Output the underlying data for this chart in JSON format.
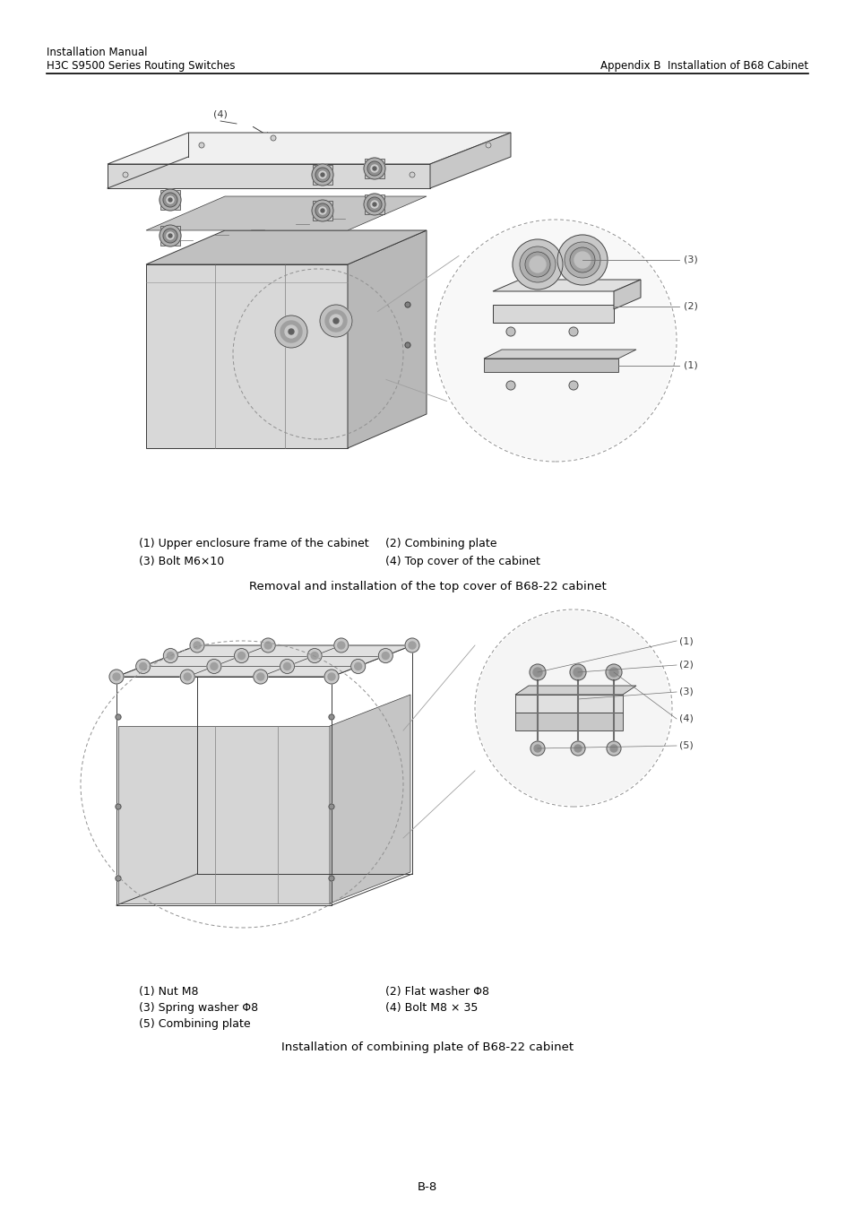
{
  "header_left_line1": "Installation Manual",
  "header_left_line2": "H3C S9500 Series Routing Switches",
  "header_right": "Appendix B  Installation of B68 Cabinet",
  "fig1_caption_col1_line1": "(1) Upper enclosure frame of the cabinet",
  "fig1_caption_col1_line2": "(3) Bolt M6×10",
  "fig1_caption_col2_line1": "(2) Combining plate",
  "fig1_caption_col2_line2": "(4) Top cover of the cabinet",
  "fig1_title": "Removal and installation of the top cover of B68-22 cabinet",
  "fig2_caption_col1_line1": "(1) Nut M8",
  "fig2_caption_col1_line2": "(3) Spring washer Φ8",
  "fig2_caption_col1_line3": "(5) Combining plate",
  "fig2_caption_col2_line1": "(2) Flat washer Φ8",
  "fig2_caption_col2_line2": "(4) Bolt M8 × 35",
  "fig2_title": "Installation of combining plate of B68-22 cabinet",
  "page_number": "B-8",
  "bg_color": "#ffffff",
  "text_color": "#000000",
  "line_color": "#000000",
  "header_fontsize": 8.5,
  "caption_fontsize": 9.0,
  "title_fontsize": 9.5,
  "page_fontsize": 9.5
}
